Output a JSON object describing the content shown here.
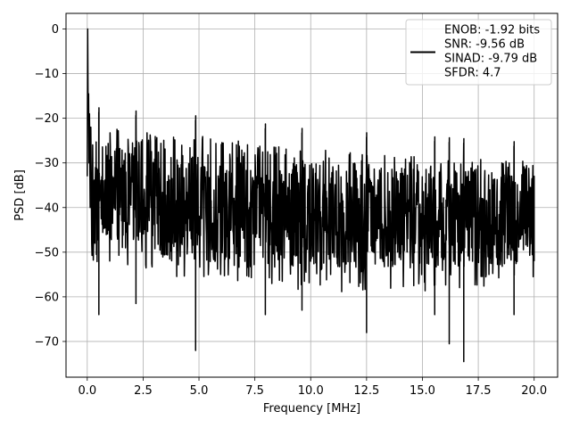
{
  "chart_data": {
    "type": "line",
    "title": "",
    "xlabel": "Frequency [MHz]",
    "ylabel": "PSD [dB]",
    "xlim": [
      -0.95,
      21.05
    ],
    "ylim": [
      -78,
      3.5
    ],
    "xticks": [
      0.0,
      2.5,
      5.0,
      7.5,
      10.0,
      12.5,
      15.0,
      17.5,
      20.0
    ],
    "xtick_labels": [
      "0.0",
      "2.5",
      "5.0",
      "7.5",
      "10.0",
      "12.5",
      "15.0",
      "17.5",
      "20.0"
    ],
    "yticks": [
      0,
      -10,
      -20,
      -30,
      -40,
      -50,
      -60,
      -70
    ],
    "ytick_labels": [
      "0",
      "−10",
      "−20",
      "−30",
      "−40",
      "−50",
      "−60",
      "−70"
    ],
    "grid": true,
    "legend_position": "top-right",
    "legend_lines": [
      "ENOB: -1.92 bits",
      "SNR: -9.56 dB",
      "SINAD: -9.79 dB",
      "SFDR: 4.7"
    ],
    "series_color": "#000000",
    "x_range": [
      0.0,
      20.0
    ],
    "peak": {
      "x": 0.0,
      "y": 0.0
    },
    "initial_trace": [
      {
        "x": 0.0,
        "y": -33.0
      },
      {
        "x": 0.02,
        "y": 0.0
      },
      {
        "x": 0.04,
        "y": -20.0
      },
      {
        "x": 0.06,
        "y": -14.5
      },
      {
        "x": 0.08,
        "y": -30.0
      },
      {
        "x": 0.1,
        "y": -19.0
      },
      {
        "x": 0.13,
        "y": -40.0
      },
      {
        "x": 0.16,
        "y": -22.0
      },
      {
        "x": 0.2,
        "y": -48.0
      }
    ],
    "envelope": [
      {
        "x": 0.2,
        "upper": -20.5,
        "lower": -48.0
      },
      {
        "x": 2.5,
        "upper": -21.5,
        "lower": -50.0
      },
      {
        "x": 5.0,
        "upper": -22.5,
        "lower": -52.0
      },
      {
        "x": 10.0,
        "upper": -25.5,
        "lower": -54.0
      },
      {
        "x": 15.0,
        "upper": -27.0,
        "lower": -54.0
      },
      {
        "x": 20.0,
        "upper": -28.5,
        "lower": -52.0
      }
    ],
    "notable_dips": [
      {
        "x": 0.52,
        "y": -64.0
      },
      {
        "x": 2.18,
        "y": -61.5
      },
      {
        "x": 4.85,
        "y": -72.0
      },
      {
        "x": 7.97,
        "y": -64.0
      },
      {
        "x": 9.61,
        "y": -63.0
      },
      {
        "x": 12.5,
        "y": -68.0
      },
      {
        "x": 15.55,
        "y": -64.0
      },
      {
        "x": 16.2,
        "y": -70.5
      },
      {
        "x": 16.85,
        "y": -74.5
      },
      {
        "x": 19.1,
        "y": -64.0
      }
    ],
    "end_value": {
      "x": 20.0,
      "y": -52.0
    }
  }
}
